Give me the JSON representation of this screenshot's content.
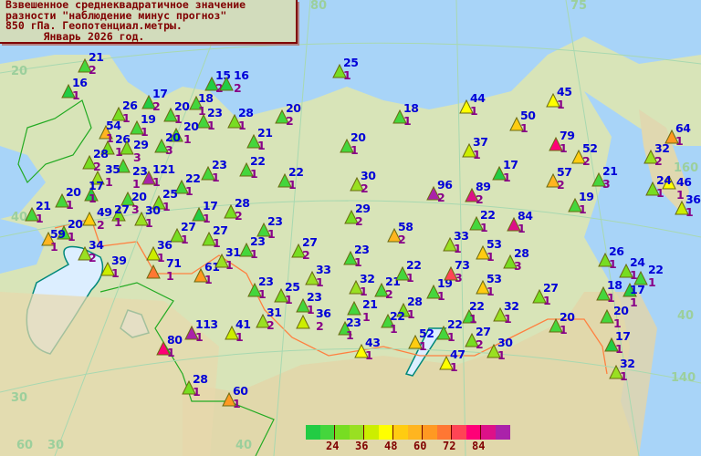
{
  "title": {
    "line1": "Взвешенное среднеквадратичное значение",
    "line2": "разности \"наблюдение минус прогноз\"",
    "line3": "850 гПа. Геопотенциал.метры.",
    "line4": "      Январь 2026 год."
  },
  "legend": {
    "colors": [
      "#22cc44",
      "#44d63c",
      "#77dd22",
      "#99e022",
      "#ccee00",
      "#ffff00",
      "#ffcc11",
      "#ffb520",
      "#ff9922",
      "#ff7733",
      "#ff4455",
      "#ff0077",
      "#dd1188",
      "#aa22aa"
    ],
    "labels": [
      "24",
      "36",
      "48",
      "60",
      "72",
      "84"
    ]
  },
  "grid_labels": [
    "20",
    "40",
    "30",
    "60",
    "30",
    "40",
    "160",
    "40",
    "140",
    "80",
    "75"
  ],
  "stations": [
    {
      "value": 21,
      "count": 2
    },
    {
      "value": 16,
      "count": 1
    },
    {
      "value": 17,
      "count": 2
    },
    {
      "value": 15,
      "count": 2
    },
    {
      "value": 16,
      "count": 2
    },
    {
      "value": 18,
      "count": 1
    },
    {
      "value": 26,
      "count": 1
    },
    {
      "value": 19,
      "count": 1
    },
    {
      "value": 20,
      "count": 1
    },
    {
      "value": 23,
      "count": 1
    },
    {
      "value": 28,
      "count": 1
    },
    {
      "value": 20,
      "count": 2
    },
    {
      "value": 25,
      "count": 1
    },
    {
      "value": 18,
      "count": 1
    },
    {
      "value": 54,
      "count": 1
    },
    {
      "value": 20,
      "count": 1
    },
    {
      "value": 26,
      "count": 1
    },
    {
      "value": 29,
      "count": 3
    },
    {
      "value": 20,
      "count": 3
    },
    {
      "value": 21,
      "count": 1
    },
    {
      "value": 20,
      "count": 1
    },
    {
      "value": 28,
      "count": 2
    },
    {
      "value": 23,
      "count": 1
    },
    {
      "value": 35,
      "count": 1
    },
    {
      "value": 121,
      "count": 1
    },
    {
      "value": 23,
      "count": 1
    },
    {
      "value": 22,
      "count": 1
    },
    {
      "value": 22,
      "count": 1
    },
    {
      "value": 17,
      "count": 1
    },
    {
      "value": 22,
      "count": 1
    },
    {
      "value": 20,
      "count": 1
    },
    {
      "value": 20,
      "count": 3
    },
    {
      "value": 25,
      "count": 1
    },
    {
      "value": 21,
      "count": 1
    },
    {
      "value": 27,
      "count": 1
    },
    {
      "value": 49,
      "count": 2
    },
    {
      "value": 30,
      "count": 1
    },
    {
      "value": 17,
      "count": 1
    },
    {
      "value": 28,
      "count": 2
    },
    {
      "value": 30,
      "count": 2
    },
    {
      "value": 29,
      "count": 2
    },
    {
      "value": 20,
      "count": 1
    },
    {
      "value": 59,
      "count": 1
    },
    {
      "value": 27,
      "count": 1
    },
    {
      "value": 27,
      "count": 1
    },
    {
      "value": 23,
      "count": 1
    },
    {
      "value": 23,
      "count": 1
    },
    {
      "value": 27,
      "count": 2
    },
    {
      "value": 34,
      "count": 2
    },
    {
      "value": 36,
      "count": 1
    },
    {
      "value": 39,
      "count": 1
    },
    {
      "value": 71,
      "count": 1
    },
    {
      "value": 61,
      "count": 1
    },
    {
      "value": 31,
      "count": 1
    },
    {
      "value": 23,
      "count": 1
    },
    {
      "value": 25,
      "count": 1
    },
    {
      "value": 33,
      "count": 1
    },
    {
      "value": 23,
      "count": 1
    },
    {
      "value": 36,
      "count": 2
    },
    {
      "value": 31,
      "count": 2
    },
    {
      "value": 113,
      "count": 1
    },
    {
      "value": 41,
      "count": 1
    },
    {
      "value": 80,
      "count": 1
    },
    {
      "value": 28,
      "count": 1
    },
    {
      "value": 60,
      "count": 1
    },
    {
      "value": 58,
      "count": 2
    },
    {
      "value": 23,
      "count": 1
    },
    {
      "value": 32,
      "count": 1
    },
    {
      "value": 21,
      "count": 2
    },
    {
      "value": 22,
      "count": 1
    },
    {
      "value": 21,
      "count": 1
    },
    {
      "value": 23,
      "count": 1
    },
    {
      "value": 28,
      "count": 1
    },
    {
      "value": 22,
      "count": 1
    },
    {
      "value": 43,
      "count": 1
    },
    {
      "value": 52,
      "count": 1
    },
    {
      "value": 22,
      "count": 1
    },
    {
      "value": 47,
      "count": 1
    },
    {
      "value": 27,
      "count": 2
    },
    {
      "value": 30,
      "count": 1
    },
    {
      "value": 22,
      "count": 1
    },
    {
      "value": 19,
      "count": 1
    },
    {
      "value": 73,
      "count": 3
    },
    {
      "value": 53,
      "count": 1
    },
    {
      "value": 53,
      "count": 1
    },
    {
      "value": 33,
      "count": 1
    },
    {
      "value": 22,
      "count": 1
    },
    {
      "value": 28,
      "count": 3
    },
    {
      "value": 32,
      "count": 1
    },
    {
      "value": 27,
      "count": 1
    },
    {
      "value": 20,
      "count": 1
    },
    {
      "value": 84,
      "count": 1
    },
    {
      "value": 96,
      "count": 2
    },
    {
      "value": 89,
      "count": 2
    },
    {
      "value": 17,
      "count": 1
    },
    {
      "value": 37,
      "count": 1
    },
    {
      "value": 44,
      "count": 1
    },
    {
      "value": 50,
      "count": 1
    },
    {
      "value": 45,
      "count": 1
    },
    {
      "value": 79,
      "count": 1
    },
    {
      "value": 52,
      "count": 2
    },
    {
      "value": 57,
      "count": 2
    },
    {
      "value": 21,
      "count": 3
    },
    {
      "value": 19,
      "count": 1
    },
    {
      "value": 64,
      "count": 1
    },
    {
      "value": 32,
      "count": 2
    },
    {
      "value": 46,
      "count": 1
    },
    {
      "value": 24,
      "count": 1
    },
    {
      "value": 36,
      "count": 1
    },
    {
      "value": 26,
      "count": 1
    },
    {
      "value": 24,
      "count": 1
    },
    {
      "value": 22,
      "count": 1
    },
    {
      "value": 17,
      "count": 1
    },
    {
      "value": 18,
      "count": 1
    },
    {
      "value": 20,
      "count": 1
    },
    {
      "value": 17,
      "count": 1
    },
    {
      "value": 32,
      "count": 1
    }
  ]
}
